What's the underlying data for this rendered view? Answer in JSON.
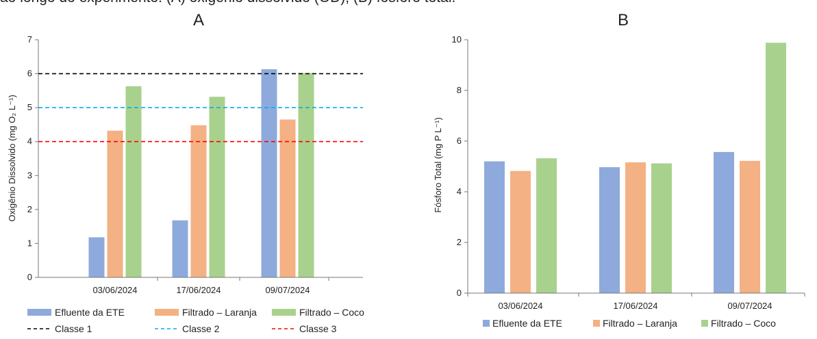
{
  "header_text": "ao longo do experimento: (A) oxigênio dissolvido (OD); (B) fósforo total.",
  "colors": {
    "efluente": "#8eaadc",
    "laranja": "#f4b183",
    "coco": "#a9d18e",
    "classe1": "#000000",
    "classe2": "#00b0f0",
    "classe3": "#ff0000"
  },
  "chart_data": [
    {
      "type": "bar",
      "panel_label": "A",
      "categories": [
        "03/06/2024",
        "17/06/2024",
        "09/07/2024"
      ],
      "series": [
        {
          "name": "Efluente da ETE",
          "values": [
            1.18,
            1.68,
            6.13
          ]
        },
        {
          "name": "Filtrado – Laranja",
          "values": [
            4.32,
            4.48,
            4.65
          ]
        },
        {
          "name": "Filtrado – Coco",
          "values": [
            5.63,
            5.32,
            6.02
          ]
        }
      ],
      "reference_lines": [
        {
          "name": "Classe 1",
          "value": 6
        },
        {
          "name": "Classe 2",
          "value": 5
        },
        {
          "name": "Classe 3",
          "value": 4
        }
      ],
      "ylabel": "Oxigênio Dissolvido (mg O₂ L⁻¹)",
      "ylim": [
        0,
        7
      ],
      "yticks": [
        0,
        1,
        2,
        3,
        4,
        5,
        6,
        7
      ],
      "grid": false,
      "legend": "bottom"
    },
    {
      "type": "bar",
      "panel_label": "B",
      "categories": [
        "03/06/2024",
        "17/06/2024",
        "09/07/2024"
      ],
      "series": [
        {
          "name": "Efluente da ETE",
          "values": [
            5.2,
            4.97,
            5.57
          ]
        },
        {
          "name": "Filtrado – Laranja",
          "values": [
            4.82,
            5.16,
            5.22
          ]
        },
        {
          "name": "Filtrado – Coco",
          "values": [
            5.32,
            5.12,
            9.88
          ]
        }
      ],
      "ylabel": "Fósforo Total (mg P L⁻¹)",
      "ylim": [
        0,
        10
      ],
      "yticks": [
        0,
        2,
        4,
        6,
        8,
        10
      ],
      "grid": false,
      "legend": "bottom"
    }
  ]
}
